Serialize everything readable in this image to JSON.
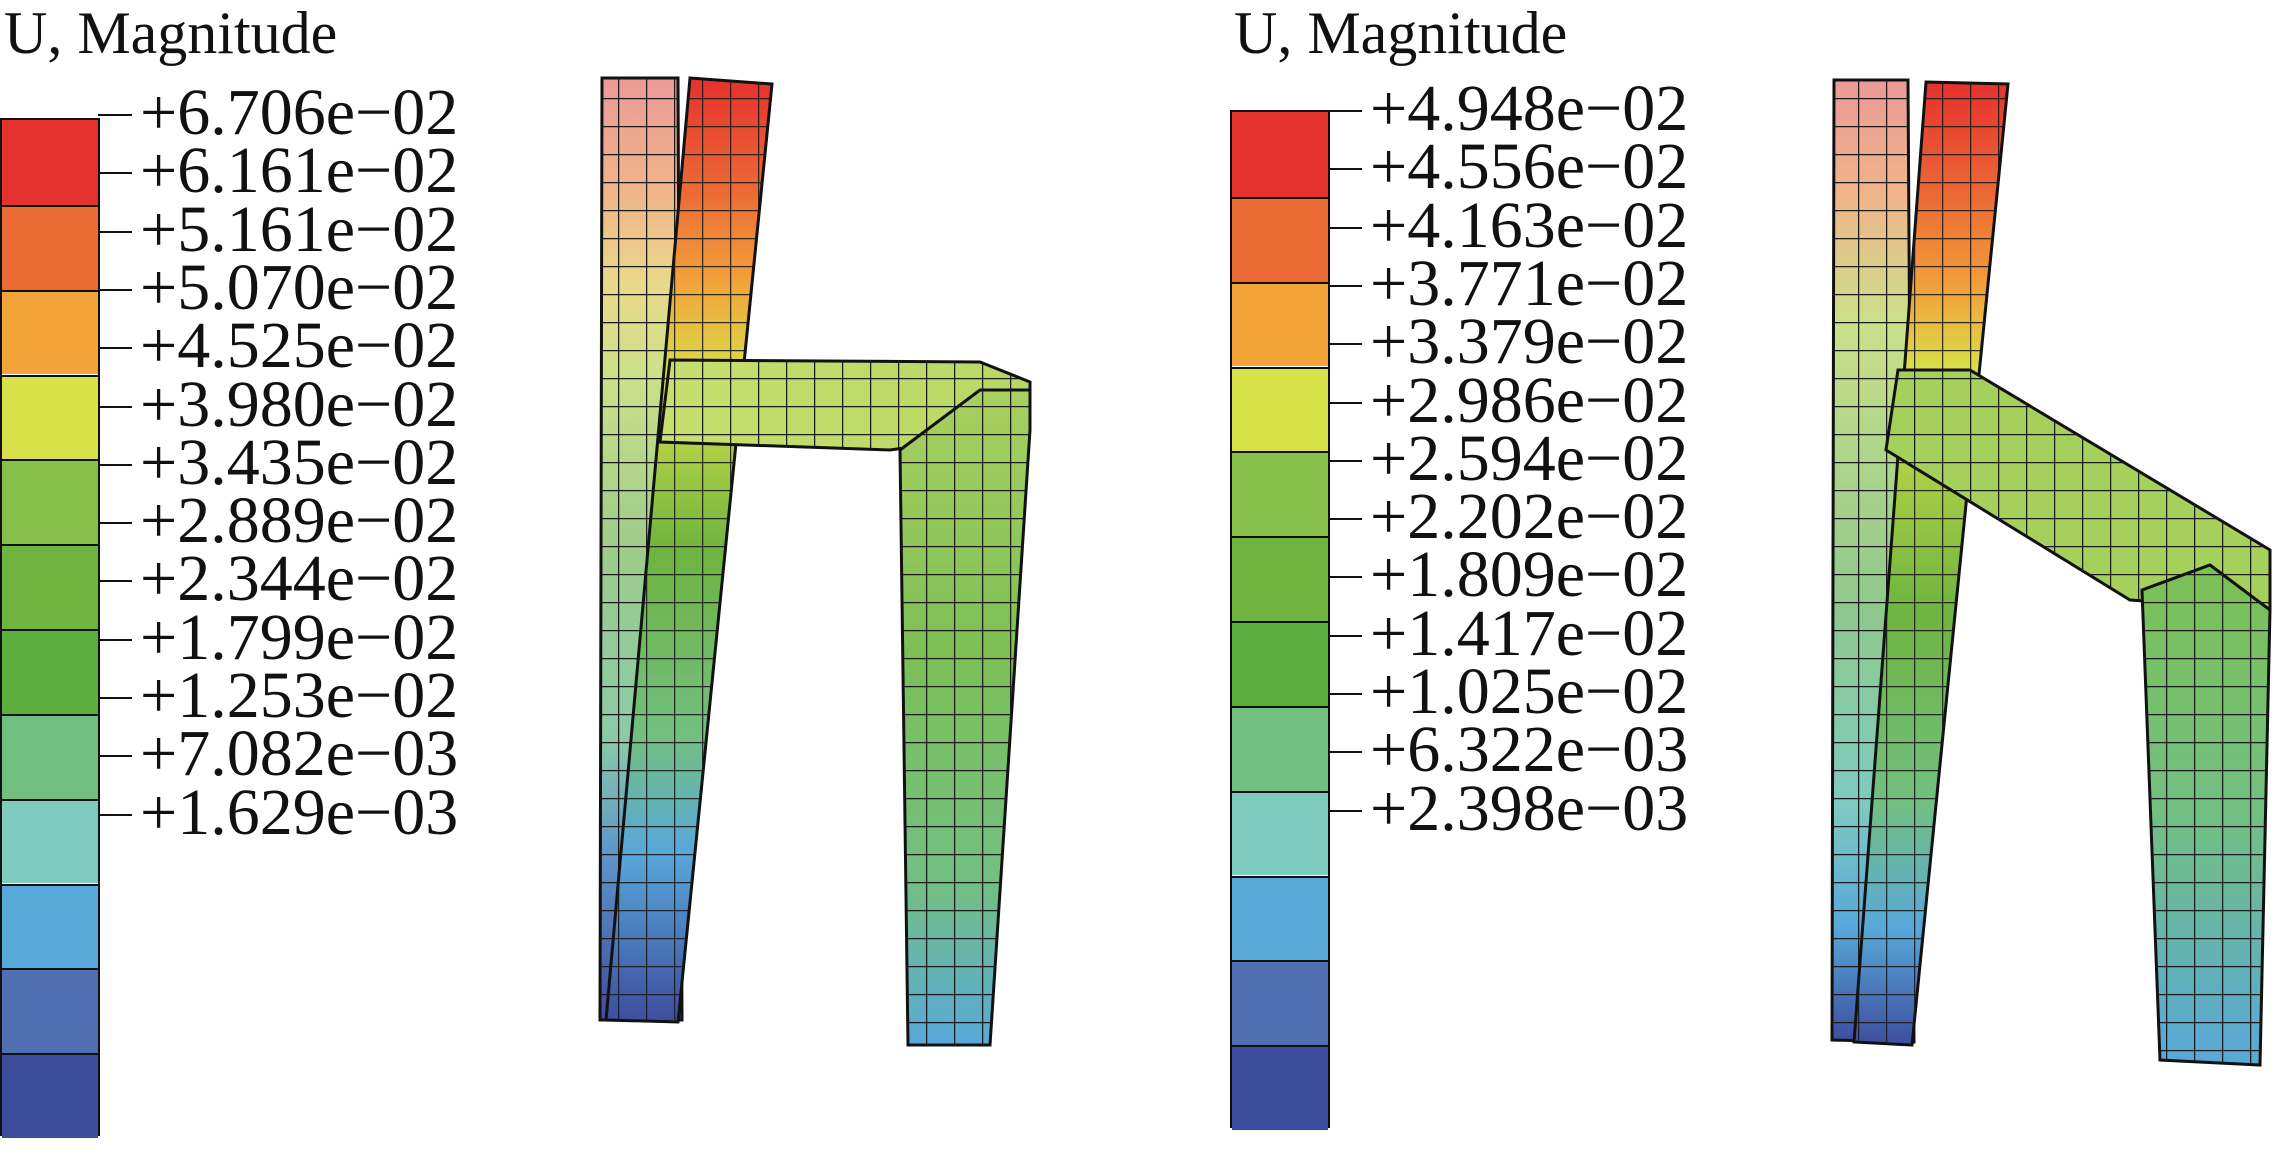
{
  "panels": [
    {
      "title": "U, Magnitude",
      "legend_labels": [
        "+6.706e−02",
        "+6.161e−02",
        "+5.161e−02",
        "+5.070e−02",
        "+4.525e−02",
        "+3.980e−02",
        "+3.435e−02",
        "+2.889e−02",
        "+2.344e−02",
        "+1.799e−02",
        "+1.253e−02",
        "+7.082e−03",
        "+1.629e−03"
      ],
      "legend_colors": [
        "#e5312d",
        "#ec6a35",
        "#f2a43a",
        "#d7e24a",
        "#86c04a",
        "#6eb43f",
        "#5caf3e",
        "#72bf82",
        "#7ecbc0",
        "#58a8da",
        "#4f6fb2",
        "#3d4d9e"
      ]
    },
    {
      "title": "U, Magnitude",
      "legend_labels": [
        "+4.948e−02",
        "+4.556e−02",
        "+4.163e−02",
        "+3.771e−02",
        "+3.379e−02",
        "+2.986e−02",
        "+2.594e−02",
        "+2.202e−02",
        "+1.809e−02",
        "+1.417e−02",
        "+1.025e−02",
        "+6.322e−03",
        "+2.398e−03"
      ],
      "legend_colors": [
        "#e5312d",
        "#ec6a35",
        "#f2a43a",
        "#d7e24a",
        "#86c04a",
        "#6eb43f",
        "#5caf3e",
        "#72bf82",
        "#7ecbc0",
        "#58a8da",
        "#4f6fb2",
        "#3d4d9e"
      ]
    }
  ]
}
